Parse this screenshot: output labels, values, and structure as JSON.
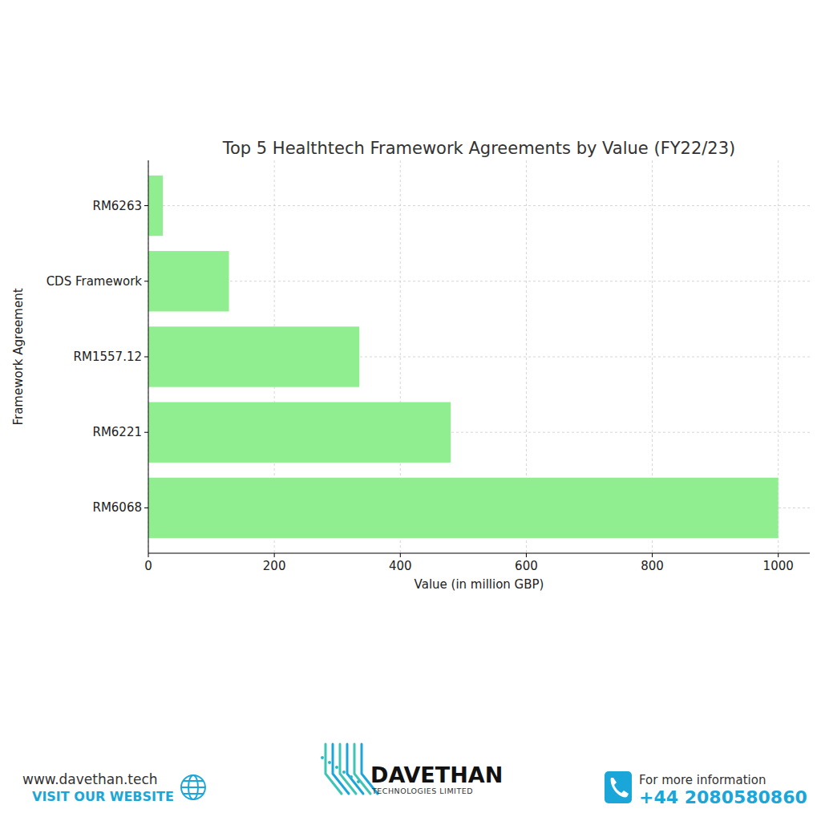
{
  "chart_data": {
    "type": "bar",
    "orientation": "horizontal",
    "title": "Top 5 Healthtech Framework Agreements by Value (FY22/23)",
    "xlabel": "Value (in million GBP)",
    "ylabel": "Framework Agreement",
    "categories": [
      "RM6068",
      "RM6221",
      "RM1557.12",
      "CDS Framework",
      "RM6263"
    ],
    "values": [
      1000,
      480,
      335,
      128,
      23
    ],
    "color": "#90ee90",
    "xlim": [
      0,
      1050
    ],
    "xticks": [
      0,
      200,
      400,
      600,
      800,
      1000
    ],
    "grid": true
  },
  "footer": {
    "website": "www.davethan.tech",
    "website_cta": "VISIT OUR WEBSITE",
    "brand": "DAVETHAN",
    "brand_sub": "TECHNOLOGIES LIMITED",
    "contact_label": "For more information",
    "phone": "+44 2080580860"
  }
}
